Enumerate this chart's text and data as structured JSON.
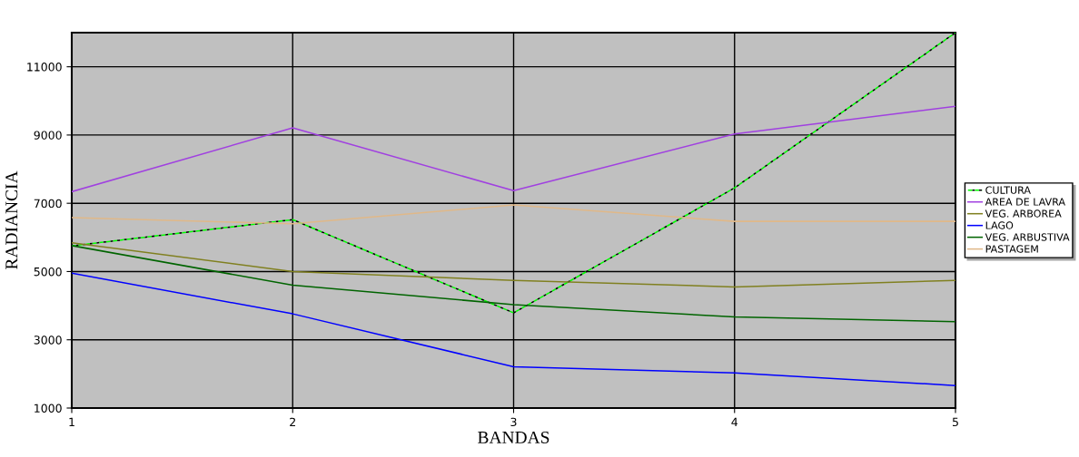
{
  "chart_data": {
    "type": "line",
    "xlabel": "BANDAS",
    "ylabel": "RADIANCIA",
    "x": [
      1,
      2,
      3,
      4,
      5
    ],
    "xlim": [
      1,
      5
    ],
    "xticks": [
      1,
      2,
      3,
      4,
      5
    ],
    "ylim": [
      1000,
      12000
    ],
    "yticks": [
      1000,
      3000,
      5000,
      7000,
      9000,
      11000
    ],
    "grid": true,
    "legend": "right",
    "series": [
      {
        "name": "CULTURA",
        "color": "#00ff00",
        "line_style": "dashed",
        "values": [
          5750,
          6520,
          3790,
          7450,
          12000
        ]
      },
      {
        "name": "AREA DE LAVRA",
        "color": "#a040e0",
        "values": [
          7340,
          9210,
          7370,
          9030,
          9840
        ]
      },
      {
        "name": "VEG. ARBOREA",
        "color": "#808020",
        "values": [
          5840,
          5000,
          4740,
          4550,
          4740
        ]
      },
      {
        "name": "LAGO",
        "color": "#0000ff",
        "values": [
          4950,
          3760,
          2210,
          2030,
          1660
        ]
      },
      {
        "name": "VEG. ARBUSTIVA",
        "color": "#006400",
        "values": [
          5760,
          4600,
          4030,
          3670,
          3530
        ]
      },
      {
        "name": "PASTAGEM",
        "color": "#e0b888",
        "values": [
          6580,
          6400,
          6950,
          6470,
          6470
        ]
      }
    ]
  }
}
